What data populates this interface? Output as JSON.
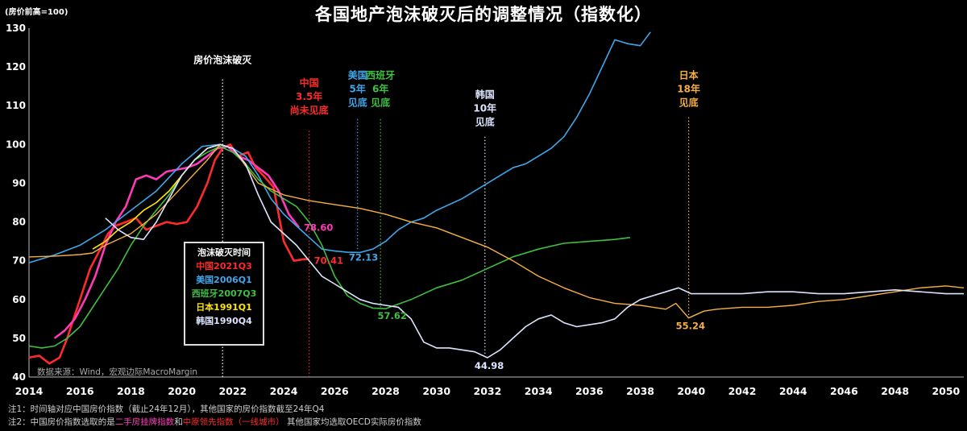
{
  "title": "各国地产泡沫破灭后的调整情况（指数化）",
  "ylabel": "(房价前高=100)",
  "source": "数据来源：Wind，宏观边际MacroMargin",
  "notes": {
    "line1": "注1：时间轴对应中国房价指数（截止24年12月），其他国家的房价指数截至24年Q4",
    "line2_a": "注2：中国房价指数选取的是",
    "line2_b": "二手房挂牌指数",
    "line2_c": "和",
    "line2_d": "中原领先指数（一线城市）",
    "line2_e": " 其他国家均选取OECD实际房价指数"
  },
  "legend": {
    "title": "泡沫破灭时间",
    "items": [
      {
        "label": "中国2021Q3",
        "color": "#ff2a2a"
      },
      {
        "label": "美国2006Q1",
        "color": "#3fa6ea"
      },
      {
        "label": "西班牙2007Q3",
        "color": "#3ec040"
      },
      {
        "label": "日本1991Q1",
        "color": "#ffe600"
      },
      {
        "label": "韩国1990Q4",
        "color": "#dde4ff"
      }
    ]
  },
  "chart_data": {
    "type": "line",
    "xlim": [
      2014,
      2050.7
    ],
    "ylim": [
      40,
      130
    ],
    "xticks": [
      2014,
      2016,
      2018,
      2020,
      2022,
      2024,
      2026,
      2028,
      2030,
      2032,
      2034,
      2036,
      2038,
      2040,
      2042,
      2044,
      2046,
      2048,
      2050
    ],
    "yticks": [
      40,
      50,
      60,
      70,
      80,
      90,
      100,
      110,
      120,
      130
    ],
    "series": [
      {
        "name": "中国2021Q3",
        "color": "#ff2a2a",
        "width": 2.6,
        "x": [
          2014,
          2014.4,
          2014.8,
          2015.2,
          2015.5,
          2015.8,
          2016.1,
          2016.4,
          2016.8,
          2017.1,
          2017.4,
          2017.8,
          2018.2,
          2018.6,
          2019.0,
          2019.4,
          2019.8,
          2020.2,
          2020.6,
          2021.0,
          2021.3,
          2021.6,
          2021.9,
          2022.2,
          2022.6,
          2022.9,
          2023.2,
          2023.6,
          2024.0,
          2024.4,
          2024.8,
          2025.0
        ],
        "y": [
          45,
          45.5,
          43.5,
          45,
          50,
          56,
          62,
          68,
          73,
          77,
          79,
          80,
          81,
          78,
          79,
          80,
          79.5,
          80,
          84,
          90,
          96,
          99,
          100,
          97,
          98,
          94,
          92,
          89,
          75,
          70,
          70.4,
          70.41
        ]
      },
      {
        "name": "中国（二手房挂牌指数）",
        "color": "#ff3ab8",
        "width": 2.6,
        "x": [
          2015.0,
          2015.4,
          2015.8,
          2016.2,
          2016.6,
          2017.0,
          2017.4,
          2017.8,
          2018.2,
          2018.6,
          2019.0,
          2019.4,
          2019.8,
          2020.2,
          2020.6,
          2021.0,
          2021.4,
          2021.8,
          2022.2,
          2022.6,
          2023.0,
          2023.4,
          2023.8,
          2024.2,
          2024.6
        ],
        "y": [
          50,
          52,
          55,
          60,
          66,
          74,
          80,
          84,
          91,
          92,
          91,
          93,
          93.5,
          94,
          95,
          97,
          99,
          99.5,
          97,
          96,
          94,
          92,
          88,
          82,
          78.6
        ]
      },
      {
        "name": "美国2006Q1",
        "color": "#3fa6ea",
        "width": 1.6,
        "x": [
          2014,
          2015,
          2016,
          2017,
          2018,
          2019,
          2020,
          2020.8,
          2021.5,
          2022.0,
          2022.5,
          2023.0,
          2023.5,
          2024.0,
          2024.5,
          2025.0,
          2025.5,
          2026.0,
          2026.5,
          2027.0,
          2027.5,
          2028.0,
          2028.5,
          2029.0,
          2029.5,
          2030,
          2030.5,
          2031,
          2031.5,
          2032,
          2032.5,
          2033,
          2033.5,
          2034,
          2034.5,
          2035,
          2035.5,
          2036,
          2036.5,
          2037.0,
          2037.5,
          2038.0,
          2038.4
        ],
        "y": [
          69.5,
          71.5,
          74,
          78,
          83,
          88,
          95,
          99.5,
          100,
          99,
          97,
          92,
          86,
          82,
          79,
          76,
          73,
          72.5,
          72.2,
          72.13,
          73,
          75,
          78,
          80,
          81,
          83,
          84.5,
          86,
          88,
          90,
          92,
          94,
          95,
          97,
          99,
          102,
          107,
          113,
          120,
          127,
          126,
          125.5,
          129
        ]
      },
      {
        "name": "西班牙2007Q3",
        "color": "#3ec040",
        "width": 1.6,
        "x": [
          2014,
          2014.5,
          2015,
          2015.5,
          2016,
          2016.5,
          2017,
          2017.5,
          2018,
          2018.5,
          2019,
          2019.5,
          2020,
          2020.5,
          2021,
          2021.5,
          2022.0,
          2022.5,
          2023.0,
          2023.5,
          2024.0,
          2024.5,
          2025.0,
          2025.5,
          2026.0,
          2026.5,
          2027.0,
          2027.5,
          2028,
          2029,
          2030,
          2031,
          2032,
          2033,
          2034,
          2035,
          2036,
          2037,
          2037.6
        ],
        "y": [
          48,
          47.5,
          48,
          50,
          53,
          58,
          63,
          68,
          74,
          79,
          83,
          87,
          92,
          96,
          98,
          99.5,
          98,
          95,
          91,
          88,
          86,
          84,
          80,
          74,
          66,
          61,
          59,
          57.8,
          57.62,
          60,
          63,
          65,
          68,
          71,
          73,
          74.5,
          75,
          75.5,
          76
        ]
      },
      {
        "name": "日本1991Q1",
        "color": "#ffe600",
        "width": 1.6,
        "x": [
          2016.5,
          2017.0,
          2017.5,
          2018.0,
          2018.5,
          2019.0,
          2019.5,
          2020.0,
          2020.5,
          2021.0,
          2021.5,
          2022.0
        ],
        "y": [
          73,
          75,
          78,
          80,
          83,
          85,
          88,
          92,
          96,
          99,
          100,
          99
        ]
      },
      {
        "name": "日本（后续）",
        "color": "#f5b041",
        "width": 1.4,
        "x": [
          2014,
          2015,
          2016,
          2016.5,
          2017,
          2018,
          2019,
          2020,
          2021,
          2021.5,
          2022,
          2023,
          2024,
          2025,
          2026,
          2027,
          2028,
          2029,
          2030,
          2031,
          2032,
          2033,
          2034,
          2035,
          2036,
          2037,
          2038,
          2038.5,
          2039,
          2039.4,
          2039.9,
          2040.5,
          2041,
          2042,
          2043,
          2044,
          2045,
          2046,
          2047,
          2048,
          2049,
          2050,
          2050.7
        ],
        "y": [
          71,
          71.2,
          71.6,
          72,
          74,
          77,
          82,
          89,
          96,
          100,
          99,
          90,
          87,
          85.5,
          84.5,
          83.5,
          82,
          80,
          78.5,
          76,
          73.5,
          70,
          66,
          63,
          60.5,
          59,
          58.5,
          58,
          57.5,
          59,
          55.24,
          57,
          57.5,
          58,
          58,
          58.5,
          59.5,
          60,
          61,
          62,
          63,
          63.5,
          63
        ]
      },
      {
        "name": "韩国1990Q4",
        "color": "#dde4ff",
        "width": 1.6,
        "x": [
          2017.0,
          2017.5,
          2018.0,
          2018.5,
          2019.0,
          2019.5,
          2020,
          2020.5,
          2021,
          2021.5,
          2022.0,
          2022.5,
          2023.0,
          2023.5,
          2024.0,
          2024.5,
          2025.0,
          2025.5,
          2026.0,
          2026.5,
          2027.0,
          2027.5,
          2028.0,
          2028.5,
          2029.0,
          2029.5,
          2030,
          2030.5,
          2031,
          2031.5,
          2032.0,
          2032.5,
          2033,
          2033.5,
          2034,
          2034.5,
          2035,
          2035.5,
          2036,
          2036.5,
          2037,
          2037.5,
          2038,
          2038.5,
          2039,
          2039.5,
          2040,
          2041,
          2042,
          2043,
          2044,
          2045,
          2046,
          2047,
          2048,
          2049,
          2050,
          2050.7
        ],
        "y": [
          81,
          78,
          76,
          75.5,
          80,
          86,
          92,
          96,
          99,
          100,
          99,
          95,
          87,
          80,
          77,
          74,
          70,
          66,
          64,
          62,
          60,
          59,
          58.5,
          58,
          55,
          49,
          47.5,
          47.5,
          47,
          46.5,
          44.98,
          47,
          50,
          53,
          55,
          56,
          54,
          53,
          53.5,
          54,
          55,
          58,
          60,
          61,
          62,
          63,
          61.5,
          61.5,
          61.5,
          62,
          62,
          61.5,
          61.5,
          62,
          62.5,
          62,
          61.5,
          61.5
        ]
      }
    ],
    "annotations": [
      {
        "text": [
          "房价泡沫破灭"
        ],
        "color": "#ffffff",
        "x": 2021.6,
        "ytext": 121,
        "line_y": [
          40,
          117
        ]
      },
      {
        "text": [
          "中国",
          "3.5年",
          "尚未见底"
        ],
        "color": "#ff2a2a",
        "x": 2025.0,
        "ytext": 115,
        "line_y": [
          40,
          104
        ]
      },
      {
        "text": [
          "美国",
          "5年",
          "见底"
        ],
        "color": "#3fa6ea",
        "x": 2026.9,
        "ytext": 117,
        "line_y": [
          73,
          107
        ]
      },
      {
        "text": [
          "西班牙",
          "6年",
          "见底"
        ],
        "color": "#3ec040",
        "x": 2027.8,
        "ytext": 117,
        "line_y": [
          58,
          107
        ]
      },
      {
        "text": [
          "韩国",
          "10年",
          "见底"
        ],
        "color": "#dde4ff",
        "x": 2031.9,
        "ytext": 112,
        "line_y": [
          46,
          102
        ]
      },
      {
        "text": [
          "日本",
          "18年",
          "见底"
        ],
        "color": "#f5b041",
        "x": 2039.9,
        "ytext": 117,
        "line_y": [
          56,
          107
        ]
      }
    ],
    "data_labels": [
      {
        "text": "78.60",
        "x": 2024.6,
        "y": 78.6,
        "color": "#ff3ab8"
      },
      {
        "text": "70.41",
        "x": 2025.0,
        "y": 70.41,
        "color": "#ff2a2a"
      },
      {
        "text": "72.13",
        "x": 2027.0,
        "y": 72.13,
        "color": "#3fa6ea"
      },
      {
        "text": "57.62",
        "x": 2028.0,
        "y": 57.62,
        "color": "#3ec040"
      },
      {
        "text": "44.98",
        "x": 2032.0,
        "y": 44.98,
        "color": "#dde4ff"
      },
      {
        "text": "55.24",
        "x": 2039.9,
        "y": 55.24,
        "color": "#f5b041"
      }
    ]
  }
}
